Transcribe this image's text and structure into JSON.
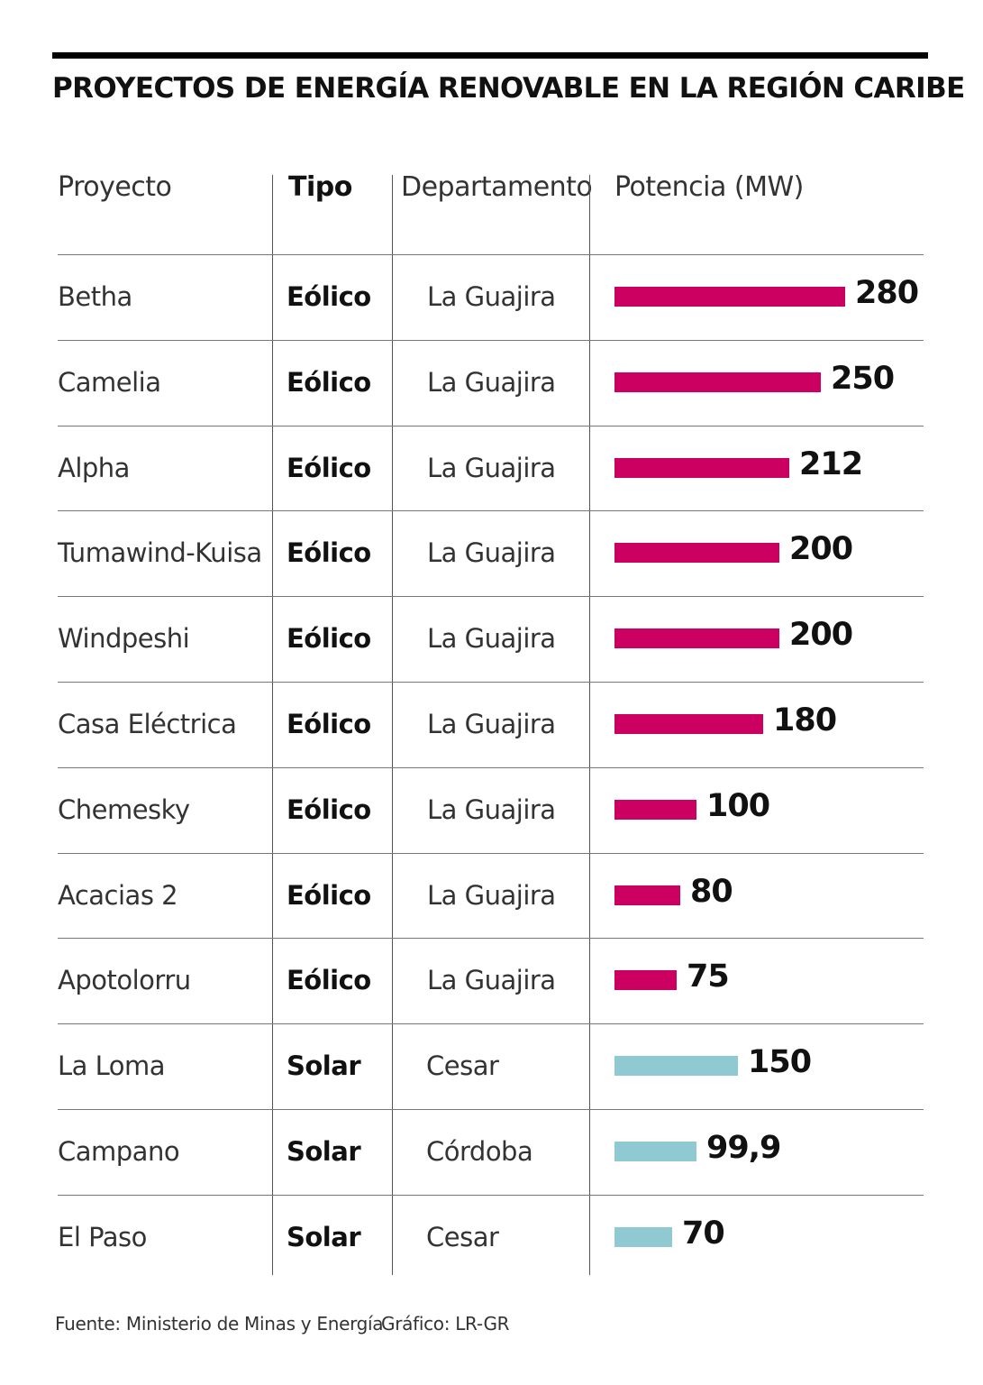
{
  "title": "PROYECTOS DE ENERGÍA RENOVABLE EN LA REGIÓN CARIBE",
  "headers": {
    "proyecto": "Proyecto",
    "tipo": "Tipo",
    "departamento": "Departamento",
    "potencia": "Potencia (MW)"
  },
  "colors": {
    "eolico": "#cc0060",
    "solar": "#8fcad2"
  },
  "rows": [
    {
      "proyecto": "Betha",
      "tipo": "Eólico",
      "departamento": "La Guajira",
      "potencia": "280"
    },
    {
      "proyecto": "Camelia",
      "tipo": "Eólico",
      "departamento": "La Guajira",
      "potencia": "250"
    },
    {
      "proyecto": "Alpha",
      "tipo": "Eólico",
      "departamento": "La Guajira",
      "potencia": "212"
    },
    {
      "proyecto": "Tumawind-Kuisa",
      "tipo": "Eólico",
      "departamento": "La Guajira",
      "potencia": "200"
    },
    {
      "proyecto": "Windpeshi",
      "tipo": "Eólico",
      "departamento": "La Guajira",
      "potencia": "200"
    },
    {
      "proyecto": "Casa Eléctrica",
      "tipo": "Eólico",
      "departamento": "La Guajira",
      "potencia": "180"
    },
    {
      "proyecto": "Chemesky",
      "tipo": "Eólico",
      "departamento": "La Guajira",
      "potencia": "100"
    },
    {
      "proyecto": "Acacias 2",
      "tipo": "Eólico",
      "departamento": "La Guajira",
      "potencia": "80"
    },
    {
      "proyecto": "Apotolorru",
      "tipo": "Eólico",
      "departamento": "La Guajira",
      "potencia": "75"
    },
    {
      "proyecto": "La Loma",
      "tipo": "Solar",
      "departamento": "Cesar",
      "potencia": "150"
    },
    {
      "proyecto": "Campano",
      "tipo": "Solar",
      "departamento": "Córdoba",
      "potencia": "99,9"
    },
    {
      "proyecto": "El Paso",
      "tipo": "Solar",
      "departamento": "Cesar",
      "potencia": "70"
    }
  ],
  "chart_data": {
    "type": "bar",
    "orientation": "horizontal",
    "title": "PROYECTOS DE ENERGÍA RENOVABLE EN LA REGIÓN CARIBE",
    "xlabel": "Potencia (MW)",
    "categories": [
      "Betha",
      "Camelia",
      "Alpha",
      "Tumawind-Kuisa",
      "Windpeshi",
      "Casa Eléctrica",
      "Chemesky",
      "Acacias 2",
      "Apotolorru",
      "La Loma",
      "Campano",
      "El Paso"
    ],
    "values": [
      280,
      250,
      212,
      200,
      200,
      180,
      100,
      80,
      75,
      150,
      99.9,
      70
    ],
    "grid": false,
    "legend": "none"
  },
  "footer": {
    "source": "Fuente: Ministerio de Minas y Energía",
    "graphic": "Gráfico: LR-GR"
  }
}
